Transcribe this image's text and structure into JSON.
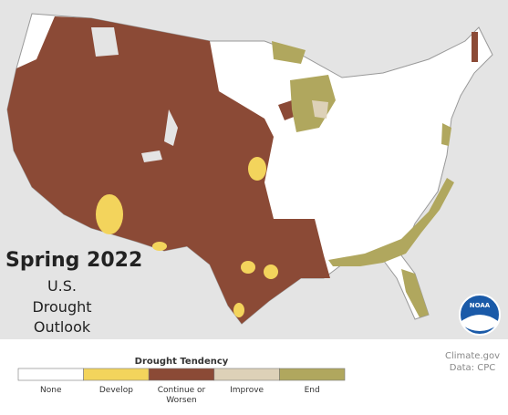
{
  "title": "Spring 2022",
  "subtitle_lines": [
    "U.S.",
    "Drought",
    "Outlook"
  ],
  "legend": {
    "title": "Drought Tendency",
    "items": [
      {
        "label": "None",
        "color": "#ffffff"
      },
      {
        "label": "Develop",
        "color": "#f3d45c"
      },
      {
        "label": "Continue or Worsen",
        "color": "#8b4a36"
      },
      {
        "label": "Improve",
        "color": "#ddd1b8"
      },
      {
        "label": "End",
        "color": "#b0a75e"
      }
    ]
  },
  "credit": [
    "Climate.gov",
    "Data: CPC"
  ],
  "logo": "NOAA"
}
